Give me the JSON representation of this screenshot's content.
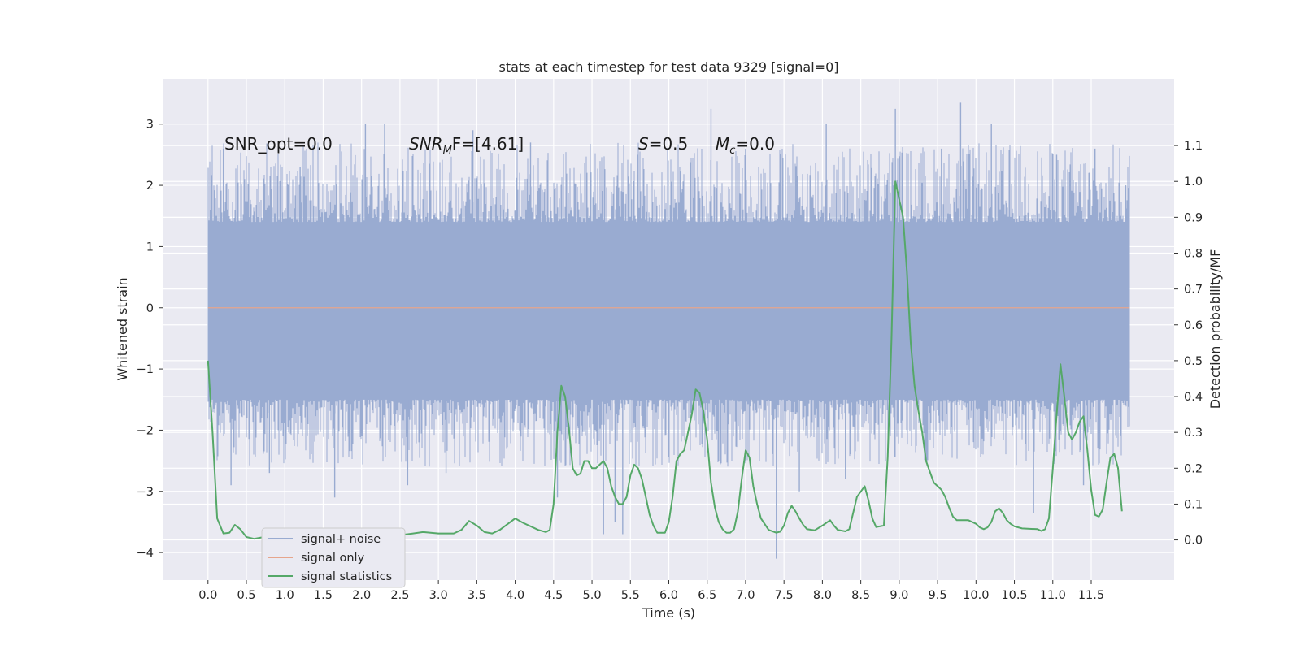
{
  "chart_data": {
    "type": "line",
    "title": "stats at each timestep for test data 9329 [signal=0]",
    "xlabel": "Time (s)",
    "ylabel": "Whitened strain",
    "ylabel_right": "Detection probability/MF",
    "xlim": [
      -0.58,
      12.58
    ],
    "ylim": [
      -4.45,
      3.74
    ],
    "ylim_right": [
      -0.112,
      1.286
    ],
    "x_ticks": [
      "0.0",
      "0.5",
      "1.0",
      "1.5",
      "2.0",
      "2.5",
      "3.0",
      "3.5",
      "4.0",
      "4.5",
      "5.0",
      "5.5",
      "6.0",
      "6.5",
      "7.0",
      "7.5",
      "8.0",
      "8.5",
      "9.0",
      "9.5",
      "10.0",
      "10.5",
      "11.0",
      "11.5"
    ],
    "y_ticks": [
      "3",
      "2",
      "1",
      "0",
      "−1",
      "−2",
      "−3",
      "−4"
    ],
    "y_ticks_right": [
      "1.1",
      "1.0",
      "0.9",
      "0.8",
      "0.7",
      "0.6",
      "0.5",
      "0.4",
      "0.3",
      "0.2",
      "0.1",
      "0.0"
    ],
    "annotations": [
      {
        "text": "SNR_opt=0.0"
      },
      {
        "text": "SNR_MF=[4.61]",
        "base": "SNR",
        "sub": "M",
        "rest": "F=[4.61]"
      },
      {
        "text": "S=0.5",
        "base": "S",
        "rest": "=0.5"
      },
      {
        "text": "M_c=0.0",
        "base": "M",
        "sub": "c",
        "rest": "=0.0"
      }
    ],
    "legend": {
      "position": "lower-left",
      "entries": [
        "signal+ noise",
        "signal only",
        "signal statistics"
      ]
    },
    "grid": true,
    "colors": {
      "noise": "#99abd1",
      "signal": "#e6a58c",
      "stats": "#55a868",
      "background": "#eaeaf2",
      "grid": "#ffffff"
    },
    "series": [
      {
        "name": "signal+ noise",
        "axis": "left",
        "x_range": [
          0,
          12
        ],
        "band_y": [
          -1.5,
          1.4
        ],
        "spikes": [
          [
            0.2,
            2.6
          ],
          [
            0.3,
            -2.9
          ],
          [
            0.8,
            -2.7
          ],
          [
            1.2,
            2.3
          ],
          [
            1.65,
            -3.1
          ],
          [
            2.05,
            3.0
          ],
          [
            2.3,
            3.0
          ],
          [
            2.6,
            -2.9
          ],
          [
            3.1,
            -2.7
          ],
          [
            3.45,
            2.9
          ],
          [
            4.2,
            2.7
          ],
          [
            4.55,
            -3.1
          ],
          [
            5.15,
            -3.7
          ],
          [
            5.3,
            -3.5
          ],
          [
            5.4,
            -3.7
          ],
          [
            5.6,
            2.5
          ],
          [
            6.0,
            -2.3
          ],
          [
            6.55,
            3.25
          ],
          [
            7.0,
            2.6
          ],
          [
            7.4,
            -4.1
          ],
          [
            7.7,
            -3.0
          ],
          [
            8.05,
            3.0
          ],
          [
            8.3,
            -2.8
          ],
          [
            8.95,
            3.25
          ],
          [
            9.55,
            2.6
          ],
          [
            9.8,
            3.35
          ],
          [
            10.2,
            3.0
          ],
          [
            10.75,
            -3.35
          ],
          [
            11.05,
            2.5
          ],
          [
            11.4,
            -2.9
          ],
          [
            11.55,
            2.6
          ],
          [
            11.95,
            2.0
          ]
        ]
      },
      {
        "name": "signal only",
        "axis": "left",
        "x": [
          0,
          12
        ],
        "y": [
          0,
          0
        ]
      },
      {
        "name": "signal statistics",
        "axis": "right",
        "points": [
          [
            0.0,
            0.5
          ],
          [
            0.06,
            0.3
          ],
          [
            0.12,
            0.06
          ],
          [
            0.2,
            0.018
          ],
          [
            0.28,
            0.02
          ],
          [
            0.35,
            0.042
          ],
          [
            0.42,
            0.03
          ],
          [
            0.5,
            0.008
          ],
          [
            0.6,
            0.003
          ],
          [
            0.7,
            0.007
          ],
          [
            0.8,
            0.004
          ],
          [
            1.0,
            0.006
          ],
          [
            1.2,
            0.004
          ],
          [
            1.3,
            0.012
          ],
          [
            1.4,
            0.008
          ],
          [
            1.5,
            0.01
          ],
          [
            1.6,
            0.024
          ],
          [
            1.7,
            0.013
          ],
          [
            1.8,
            0.02
          ],
          [
            1.9,
            0.018
          ],
          [
            2.0,
            0.011
          ],
          [
            2.2,
            0.016
          ],
          [
            2.4,
            0.012
          ],
          [
            2.6,
            0.016
          ],
          [
            2.8,
            0.022
          ],
          [
            3.0,
            0.018
          ],
          [
            3.2,
            0.018
          ],
          [
            3.3,
            0.028
          ],
          [
            3.4,
            0.053
          ],
          [
            3.5,
            0.04
          ],
          [
            3.6,
            0.022
          ],
          [
            3.7,
            0.018
          ],
          [
            3.8,
            0.028
          ],
          [
            4.0,
            0.06
          ],
          [
            4.1,
            0.048
          ],
          [
            4.3,
            0.028
          ],
          [
            4.4,
            0.022
          ],
          [
            4.45,
            0.028
          ],
          [
            4.5,
            0.1
          ],
          [
            4.55,
            0.3
          ],
          [
            4.6,
            0.43
          ],
          [
            4.65,
            0.4
          ],
          [
            4.7,
            0.31
          ],
          [
            4.75,
            0.2
          ],
          [
            4.8,
            0.18
          ],
          [
            4.85,
            0.185
          ],
          [
            4.9,
            0.22
          ],
          [
            4.95,
            0.22
          ],
          [
            5.0,
            0.2
          ],
          [
            5.05,
            0.2
          ],
          [
            5.1,
            0.21
          ],
          [
            5.15,
            0.22
          ],
          [
            5.2,
            0.2
          ],
          [
            5.25,
            0.15
          ],
          [
            5.3,
            0.12
          ],
          [
            5.35,
            0.1
          ],
          [
            5.4,
            0.1
          ],
          [
            5.45,
            0.12
          ],
          [
            5.5,
            0.18
          ],
          [
            5.55,
            0.21
          ],
          [
            5.6,
            0.2
          ],
          [
            5.65,
            0.17
          ],
          [
            5.7,
            0.12
          ],
          [
            5.75,
            0.07
          ],
          [
            5.8,
            0.04
          ],
          [
            5.85,
            0.02
          ],
          [
            5.9,
            0.02
          ],
          [
            5.95,
            0.02
          ],
          [
            6.0,
            0.05
          ],
          [
            6.05,
            0.12
          ],
          [
            6.1,
            0.22
          ],
          [
            6.15,
            0.24
          ],
          [
            6.2,
            0.25
          ],
          [
            6.25,
            0.3
          ],
          [
            6.3,
            0.35
          ],
          [
            6.35,
            0.42
          ],
          [
            6.4,
            0.41
          ],
          [
            6.45,
            0.36
          ],
          [
            6.5,
            0.28
          ],
          [
            6.55,
            0.16
          ],
          [
            6.6,
            0.09
          ],
          [
            6.65,
            0.05
          ],
          [
            6.7,
            0.03
          ],
          [
            6.75,
            0.02
          ],
          [
            6.8,
            0.02
          ],
          [
            6.85,
            0.03
          ],
          [
            6.9,
            0.08
          ],
          [
            6.95,
            0.17
          ],
          [
            7.0,
            0.25
          ],
          [
            7.05,
            0.23
          ],
          [
            7.1,
            0.15
          ],
          [
            7.15,
            0.1
          ],
          [
            7.2,
            0.06
          ],
          [
            7.3,
            0.028
          ],
          [
            7.4,
            0.02
          ],
          [
            7.45,
            0.023
          ],
          [
            7.5,
            0.04
          ],
          [
            7.55,
            0.075
          ],
          [
            7.6,
            0.095
          ],
          [
            7.65,
            0.08
          ],
          [
            7.7,
            0.06
          ],
          [
            7.75,
            0.042
          ],
          [
            7.8,
            0.03
          ],
          [
            7.9,
            0.027
          ],
          [
            8.0,
            0.04
          ],
          [
            8.1,
            0.055
          ],
          [
            8.15,
            0.04
          ],
          [
            8.2,
            0.028
          ],
          [
            8.3,
            0.024
          ],
          [
            8.35,
            0.03
          ],
          [
            8.45,
            0.12
          ],
          [
            8.55,
            0.15
          ],
          [
            8.6,
            0.11
          ],
          [
            8.65,
            0.06
          ],
          [
            8.7,
            0.036
          ],
          [
            8.8,
            0.04
          ],
          [
            8.85,
            0.23
          ],
          [
            8.9,
            0.56
          ],
          [
            8.95,
            1.0
          ],
          [
            9.0,
            0.95
          ],
          [
            9.05,
            0.9
          ],
          [
            9.1,
            0.75
          ],
          [
            9.15,
            0.55
          ],
          [
            9.2,
            0.43
          ],
          [
            9.25,
            0.36
          ],
          [
            9.3,
            0.3
          ],
          [
            9.35,
            0.22
          ],
          [
            9.4,
            0.19
          ],
          [
            9.45,
            0.16
          ],
          [
            9.55,
            0.14
          ],
          [
            9.6,
            0.12
          ],
          [
            9.65,
            0.09
          ],
          [
            9.7,
            0.065
          ],
          [
            9.75,
            0.055
          ],
          [
            9.9,
            0.055
          ],
          [
            9.95,
            0.05
          ],
          [
            10.0,
            0.045
          ],
          [
            10.05,
            0.035
          ],
          [
            10.1,
            0.03
          ],
          [
            10.15,
            0.035
          ],
          [
            10.2,
            0.05
          ],
          [
            10.25,
            0.08
          ],
          [
            10.3,
            0.088
          ],
          [
            10.35,
            0.075
          ],
          [
            10.4,
            0.055
          ],
          [
            10.45,
            0.045
          ],
          [
            10.5,
            0.038
          ],
          [
            10.6,
            0.032
          ],
          [
            10.8,
            0.03
          ],
          [
            10.85,
            0.025
          ],
          [
            10.9,
            0.03
          ],
          [
            10.95,
            0.06
          ],
          [
            11.0,
            0.2
          ],
          [
            11.05,
            0.35
          ],
          [
            11.1,
            0.49
          ],
          [
            11.15,
            0.4
          ],
          [
            11.2,
            0.3
          ],
          [
            11.25,
            0.28
          ],
          [
            11.3,
            0.3
          ],
          [
            11.35,
            0.33
          ],
          [
            11.4,
            0.345
          ],
          [
            11.45,
            0.25
          ],
          [
            11.5,
            0.14
          ],
          [
            11.55,
            0.07
          ],
          [
            11.6,
            0.065
          ],
          [
            11.65,
            0.085
          ],
          [
            11.7,
            0.16
          ],
          [
            11.75,
            0.23
          ],
          [
            11.8,
            0.24
          ],
          [
            11.85,
            0.2
          ],
          [
            11.9,
            0.08
          ]
        ]
      }
    ]
  }
}
